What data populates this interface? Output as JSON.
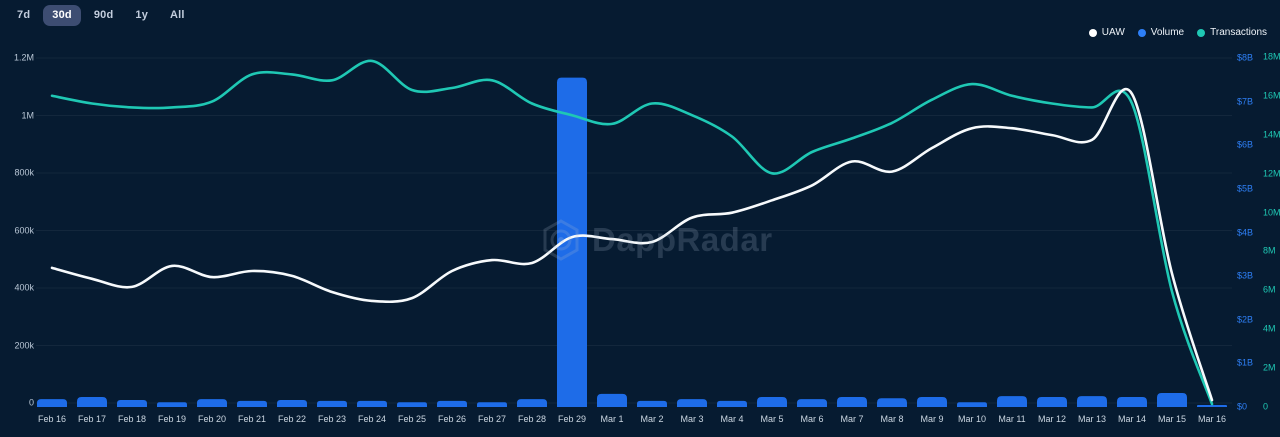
{
  "toolbar": {
    "time_ranges": [
      "7d",
      "30d",
      "90d",
      "1y",
      "All"
    ],
    "selected": "30d"
  },
  "legend": {
    "items": [
      {
        "label": "UAW",
        "color": "#ffffff"
      },
      {
        "label": "Volume",
        "color": "#2d7ff7"
      },
      {
        "label": "Transactions",
        "color": "#1fc8b4"
      }
    ]
  },
  "watermark": {
    "text": "DappRadar"
  },
  "colors": {
    "background": "#061b31",
    "bar_blue": "#1e6ce8",
    "uaw_line": "#f7fafc",
    "transactions_line": "#1fc8b4",
    "usd_axis": "#2e7ff5",
    "count_axis": "#1fc8b4",
    "active_button_bg": "#3d4d72"
  },
  "chart_data": {
    "type": "line+bar combo",
    "title": "",
    "legend_position": "top-right",
    "grid": "horizontal-faint",
    "categories": [
      "Feb 16",
      "Feb 17",
      "Feb 18",
      "Feb 19",
      "Feb 20",
      "Feb 21",
      "Feb 22",
      "Feb 23",
      "Feb 24",
      "Feb 25",
      "Feb 26",
      "Feb 27",
      "Feb 28",
      "Feb 29",
      "Mar 1",
      "Mar 2",
      "Mar 3",
      "Mar 4",
      "Mar 5",
      "Mar 6",
      "Mar 7",
      "Mar 8",
      "Mar 9",
      "Mar 10",
      "Mar 11",
      "Mar 12",
      "Mar 13",
      "Mar 14",
      "Mar 15",
      "Mar 16"
    ],
    "series": [
      {
        "name": "UAW",
        "type": "line",
        "axis": "left",
        "color": "#f7fafc",
        "values": [
          470000,
          432000,
          404000,
          477000,
          438000,
          459000,
          442000,
          386000,
          355000,
          365000,
          459000,
          497000,
          487000,
          577000,
          570000,
          560000,
          645000,
          662000,
          705000,
          757000,
          840000,
          805000,
          887000,
          956000,
          956000,
          932000,
          915000,
          1075000,
          450000,
          10000
        ]
      },
      {
        "name": "Volume",
        "type": "bar",
        "axis": "right_usd",
        "color": "#1e6ce8",
        "values": [
          180000000,
          230000000,
          160000000,
          110000000,
          180000000,
          140000000,
          160000000,
          140000000,
          140000000,
          110000000,
          140000000,
          110000000,
          180000000,
          7550000000,
          300000000,
          140000000,
          180000000,
          140000000,
          230000000,
          180000000,
          230000000,
          200000000,
          230000000,
          110000000,
          250000000,
          230000000,
          250000000,
          230000000,
          320000000,
          40000000
        ]
      },
      {
        "name": "Transactions",
        "type": "line",
        "axis": "right_count",
        "color": "#1fc8b4",
        "values": [
          16000000,
          15600000,
          15400000,
          15400000,
          15700000,
          17100000,
          17100000,
          16800000,
          17800000,
          16300000,
          16400000,
          16800000,
          15600000,
          15000000,
          14550000,
          15600000,
          15000000,
          13900000,
          12000000,
          13100000,
          13800000,
          14600000,
          15800000,
          16600000,
          16000000,
          15600000,
          15400000,
          15600000,
          5900000,
          100000
        ]
      }
    ],
    "axes": {
      "left": {
        "name": "UAW",
        "min": 0,
        "max": 1200000,
        "ticks": [
          "0",
          "200k",
          "400k",
          "600k",
          "800k",
          "1M",
          "1.2M"
        ]
      },
      "right_usd": {
        "name": "Volume (USD)",
        "min": 0,
        "max": 8000000000,
        "ticks": [
          "$0",
          "$1B",
          "$2B",
          "$3B",
          "$4B",
          "$5B",
          "$6B",
          "$7B",
          "$8B"
        ]
      },
      "right_count": {
        "name": "Transactions",
        "min": 0,
        "max": 18000000,
        "ticks": [
          "0",
          "2M",
          "4M",
          "6M",
          "8M",
          "10M",
          "12M",
          "14M",
          "16M",
          "18M"
        ]
      }
    }
  }
}
